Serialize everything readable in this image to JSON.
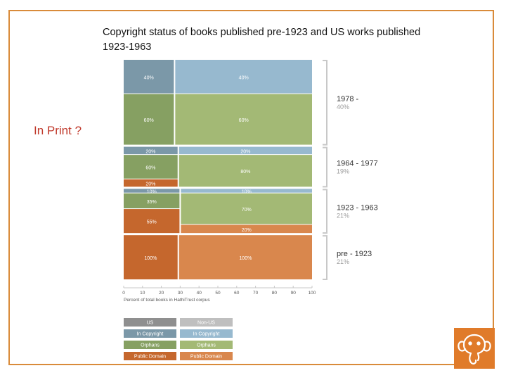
{
  "title": "Copyright status of books published pre-1923 and US works published 1923-1963",
  "annotation": "In Print ?",
  "colors": {
    "us_in_copyright": "#7b98a8",
    "non_us_in_copyright": "#97b9cf",
    "us_orphans": "#86a062",
    "non_us_orphans": "#a3b975",
    "us_public_domain": "#c5672d",
    "non_us_public_domain": "#d9874d",
    "legend_us": "#8f8f8f",
    "legend_non_us": "#bfbfbf",
    "bracket": "#c8c8c8",
    "logo": "#e07b2a"
  },
  "chart_data": {
    "type": "mosaic",
    "xlabel": "Percent of total books in HathiTrust corpus",
    "xlim": [
      0,
      100
    ],
    "xticks": [
      0,
      10,
      20,
      30,
      40,
      50,
      60,
      70,
      80,
      90,
      100
    ],
    "legend": {
      "headers": [
        "US",
        "Non-US"
      ],
      "rows": [
        "In Copyright",
        "Orphans",
        "Public Domain"
      ]
    },
    "periods": [
      {
        "label": "1978 -",
        "share_label": "40%",
        "share": 40,
        "us_share": 27,
        "us": [
          {
            "status": "In Copyright",
            "value": 40,
            "label": "40%"
          },
          {
            "status": "Orphans",
            "value": 60,
            "label": "60%"
          }
        ],
        "non_us": [
          {
            "status": "In Copyright",
            "value": 40,
            "label": "40%"
          },
          {
            "status": "Orphans",
            "value": 60,
            "label": "60%"
          }
        ]
      },
      {
        "label": "1964 - 1977",
        "share_label": "19%",
        "share": 19,
        "us_share": 29,
        "us": [
          {
            "status": "In Copyright",
            "value": 20,
            "label": "20%"
          },
          {
            "status": "Orphans",
            "value": 60,
            "label": "60%"
          },
          {
            "status": "Public Domain",
            "value": 20,
            "label": "20%"
          }
        ],
        "non_us": [
          {
            "status": "In Copyright",
            "value": 20,
            "label": "20%"
          },
          {
            "status": "Orphans",
            "value": 80,
            "label": "80%"
          }
        ]
      },
      {
        "label": "1923 - 1963",
        "share_label": "21%",
        "share": 21,
        "us_share": 30,
        "us": [
          {
            "status": "In Copyright",
            "value": 10,
            "label": "10%"
          },
          {
            "status": "Orphans",
            "value": 35,
            "label": "35%"
          },
          {
            "status": "Public Domain",
            "value": 55,
            "label": "55%"
          }
        ],
        "non_us": [
          {
            "status": "In Copyright",
            "value": 10,
            "label": "10%"
          },
          {
            "status": "Orphans",
            "value": 70,
            "label": "70%"
          },
          {
            "status": "Public Domain",
            "value": 20,
            "label": "20%"
          }
        ]
      },
      {
        "label": "pre - 1923",
        "share_label": "21%",
        "share": 21,
        "us_share": 29,
        "us": [
          {
            "status": "Public Domain",
            "value": 100,
            "label": "100%"
          }
        ],
        "non_us": [
          {
            "status": "Public Domain",
            "value": 100,
            "label": "100%"
          }
        ]
      }
    ]
  }
}
